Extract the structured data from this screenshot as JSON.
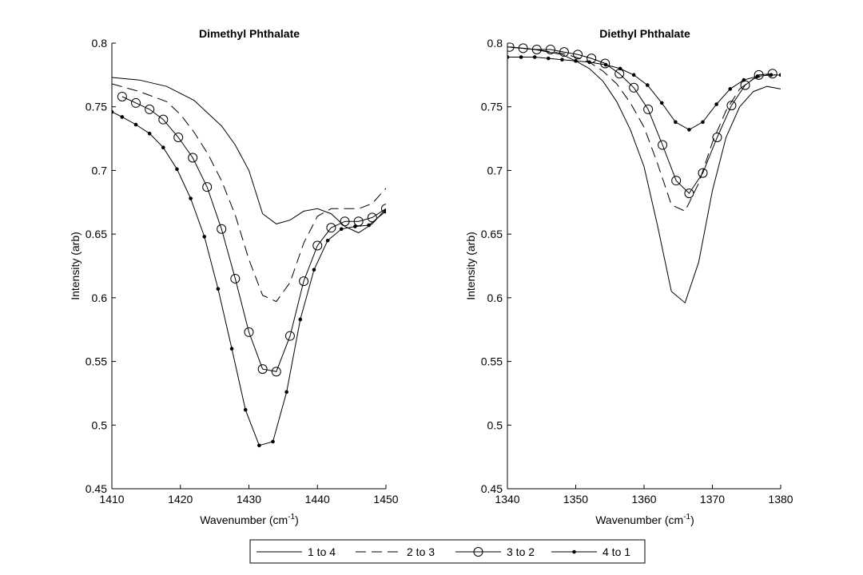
{
  "charts": [
    {
      "type": "line",
      "title": "Dimethyl  Phthalate",
      "xlabel": "Wavenumber (cm",
      "xlabel_sup": "-1",
      "xlabel_close": ")",
      "ylabel": "Intensity (arb)",
      "xlim": [
        1410,
        1450
      ],
      "ylim": [
        0.45,
        0.8
      ],
      "xticks": [
        1410,
        1420,
        1430,
        1440,
        1450
      ],
      "yticks": [
        0.45,
        0.5,
        0.55,
        0.6,
        0.65,
        0.7,
        0.75,
        0.8
      ],
      "xtick_labels": [
        "1410",
        "1420",
        "1430",
        "1440",
        "1450"
      ],
      "ytick_labels": [
        "0.45",
        "0.5",
        "0.55",
        "0.6",
        "0.65",
        "0.7",
        "0.75",
        "0.8"
      ],
      "series": [
        {
          "name": "1 to 4",
          "x": [
            1410,
            1414,
            1418,
            1422,
            1426,
            1428,
            1430,
            1432,
            1434,
            1436,
            1438,
            1440,
            1442,
            1444,
            1446,
            1448,
            1450
          ],
          "y": [
            0.773,
            0.771,
            0.766,
            0.755,
            0.735,
            0.72,
            0.7,
            0.666,
            0.658,
            0.661,
            0.668,
            0.67,
            0.666,
            0.656,
            0.651,
            0.658,
            0.67
          ]
        },
        {
          "name": "2 to 3",
          "x": [
            1410,
            1414,
            1418,
            1420,
            1422,
            1424,
            1426,
            1428,
            1430,
            1432,
            1434,
            1436,
            1438,
            1440,
            1442,
            1444,
            1446,
            1448,
            1450
          ],
          "y": [
            0.768,
            0.762,
            0.754,
            0.744,
            0.73,
            0.713,
            0.692,
            0.665,
            0.63,
            0.602,
            0.597,
            0.612,
            0.643,
            0.664,
            0.67,
            0.67,
            0.67,
            0.674,
            0.686
          ]
        },
        {
          "name": "3 to 2",
          "x": [
            1411.5,
            1413.5,
            1415.5,
            1417.5,
            1419.7,
            1421.8,
            1423.9,
            1426,
            1428,
            1430,
            1432,
            1434,
            1436,
            1438,
            1440,
            1442,
            1444,
            1446,
            1448,
            1450
          ],
          "y": [
            0.758,
            0.753,
            0.748,
            0.74,
            0.726,
            0.71,
            0.687,
            0.654,
            0.615,
            0.573,
            0.544,
            0.542,
            0.57,
            0.613,
            0.641,
            0.655,
            0.66,
            0.66,
            0.663,
            0.67
          ]
        },
        {
          "name": "4 to 1",
          "x": [
            1410,
            1411.5,
            1413.5,
            1415.5,
            1417.5,
            1419.5,
            1421.5,
            1423.5,
            1425.5,
            1427.5,
            1429.5,
            1431.5,
            1433.5,
            1435.5,
            1437.5,
            1439.5,
            1441.5,
            1443.5,
            1445.5,
            1447.5,
            1450
          ],
          "y": [
            0.746,
            0.742,
            0.736,
            0.729,
            0.718,
            0.701,
            0.678,
            0.648,
            0.607,
            0.56,
            0.512,
            0.484,
            0.487,
            0.526,
            0.583,
            0.622,
            0.645,
            0.654,
            0.656,
            0.657,
            0.668
          ]
        }
      ]
    },
    {
      "type": "line",
      "title": "Diethyl  Phthalate",
      "xlabel": "Wavenumber (cm",
      "xlabel_sup": "-1",
      "xlabel_close": ")",
      "ylabel": "Intensity (arb)",
      "xlim": [
        1340,
        1380
      ],
      "ylim": [
        0.45,
        0.8
      ],
      "xticks": [
        1340,
        1350,
        1360,
        1370,
        1380
      ],
      "yticks": [
        0.45,
        0.5,
        0.55,
        0.6,
        0.65,
        0.7,
        0.75,
        0.8
      ],
      "xtick_labels": [
        "1340",
        "1350",
        "1360",
        "1370",
        "1380"
      ],
      "ytick_labels": [
        "0.45",
        "0.5",
        "0.55",
        "0.6",
        "0.65",
        "0.7",
        "0.75",
        "0.8"
      ],
      "series": [
        {
          "name": "1 to 4",
          "x": [
            1340,
            1344,
            1348,
            1350,
            1352,
            1354,
            1356,
            1358,
            1360,
            1362,
            1364,
            1366,
            1368,
            1370,
            1372,
            1374,
            1376,
            1378,
            1380
          ],
          "y": [
            0.797,
            0.795,
            0.791,
            0.786,
            0.78,
            0.77,
            0.754,
            0.732,
            0.703,
            0.656,
            0.605,
            0.596,
            0.628,
            0.684,
            0.726,
            0.75,
            0.762,
            0.766,
            0.764
          ]
        },
        {
          "name": "2 to 3",
          "x": [
            1340,
            1344,
            1348,
            1350,
            1352,
            1354,
            1356,
            1358,
            1360,
            1362,
            1364,
            1366,
            1368,
            1370,
            1372,
            1374,
            1376,
            1378,
            1380
          ],
          "y": [
            0.797,
            0.795,
            0.792,
            0.789,
            0.785,
            0.778,
            0.768,
            0.753,
            0.734,
            0.705,
            0.673,
            0.668,
            0.69,
            0.722,
            0.747,
            0.764,
            0.772,
            0.775,
            0.775
          ]
        },
        {
          "name": "3 to 2",
          "x": [
            1340.3,
            1342.3,
            1344.3,
            1346.3,
            1348.3,
            1350.3,
            1352.3,
            1354.3,
            1356.4,
            1358.5,
            1360.6,
            1362.7,
            1364.7,
            1366.6,
            1368.6,
            1370.7,
            1372.8,
            1374.8,
            1376.8,
            1378.8
          ],
          "y": [
            0.797,
            0.796,
            0.795,
            0.795,
            0.793,
            0.791,
            0.788,
            0.784,
            0.776,
            0.765,
            0.748,
            0.72,
            0.692,
            0.682,
            0.698,
            0.726,
            0.751,
            0.767,
            0.775,
            0.776
          ]
        },
        {
          "name": "4 to 1",
          "x": [
            1340,
            1342,
            1344,
            1346,
            1348,
            1350,
            1352,
            1354.4,
            1356.5,
            1358.5,
            1360.5,
            1362.6,
            1364.6,
            1366.6,
            1368.6,
            1370.6,
            1372.6,
            1374.6,
            1376.6,
            1378.6,
            1380
          ],
          "y": [
            0.789,
            0.789,
            0.789,
            0.788,
            0.787,
            0.786,
            0.785,
            0.783,
            0.78,
            0.775,
            0.767,
            0.753,
            0.738,
            0.732,
            0.738,
            0.752,
            0.764,
            0.771,
            0.774,
            0.775,
            0.775
          ]
        }
      ]
    }
  ],
  "legend": {
    "position": "bottom",
    "entries": [
      "1 to 4",
      "2 to 3",
      "3 to 2",
      "4 to 1"
    ]
  },
  "colors": {
    "line": "#000000",
    "background": "#ffffff",
    "marker_fill": "#ffffff"
  }
}
